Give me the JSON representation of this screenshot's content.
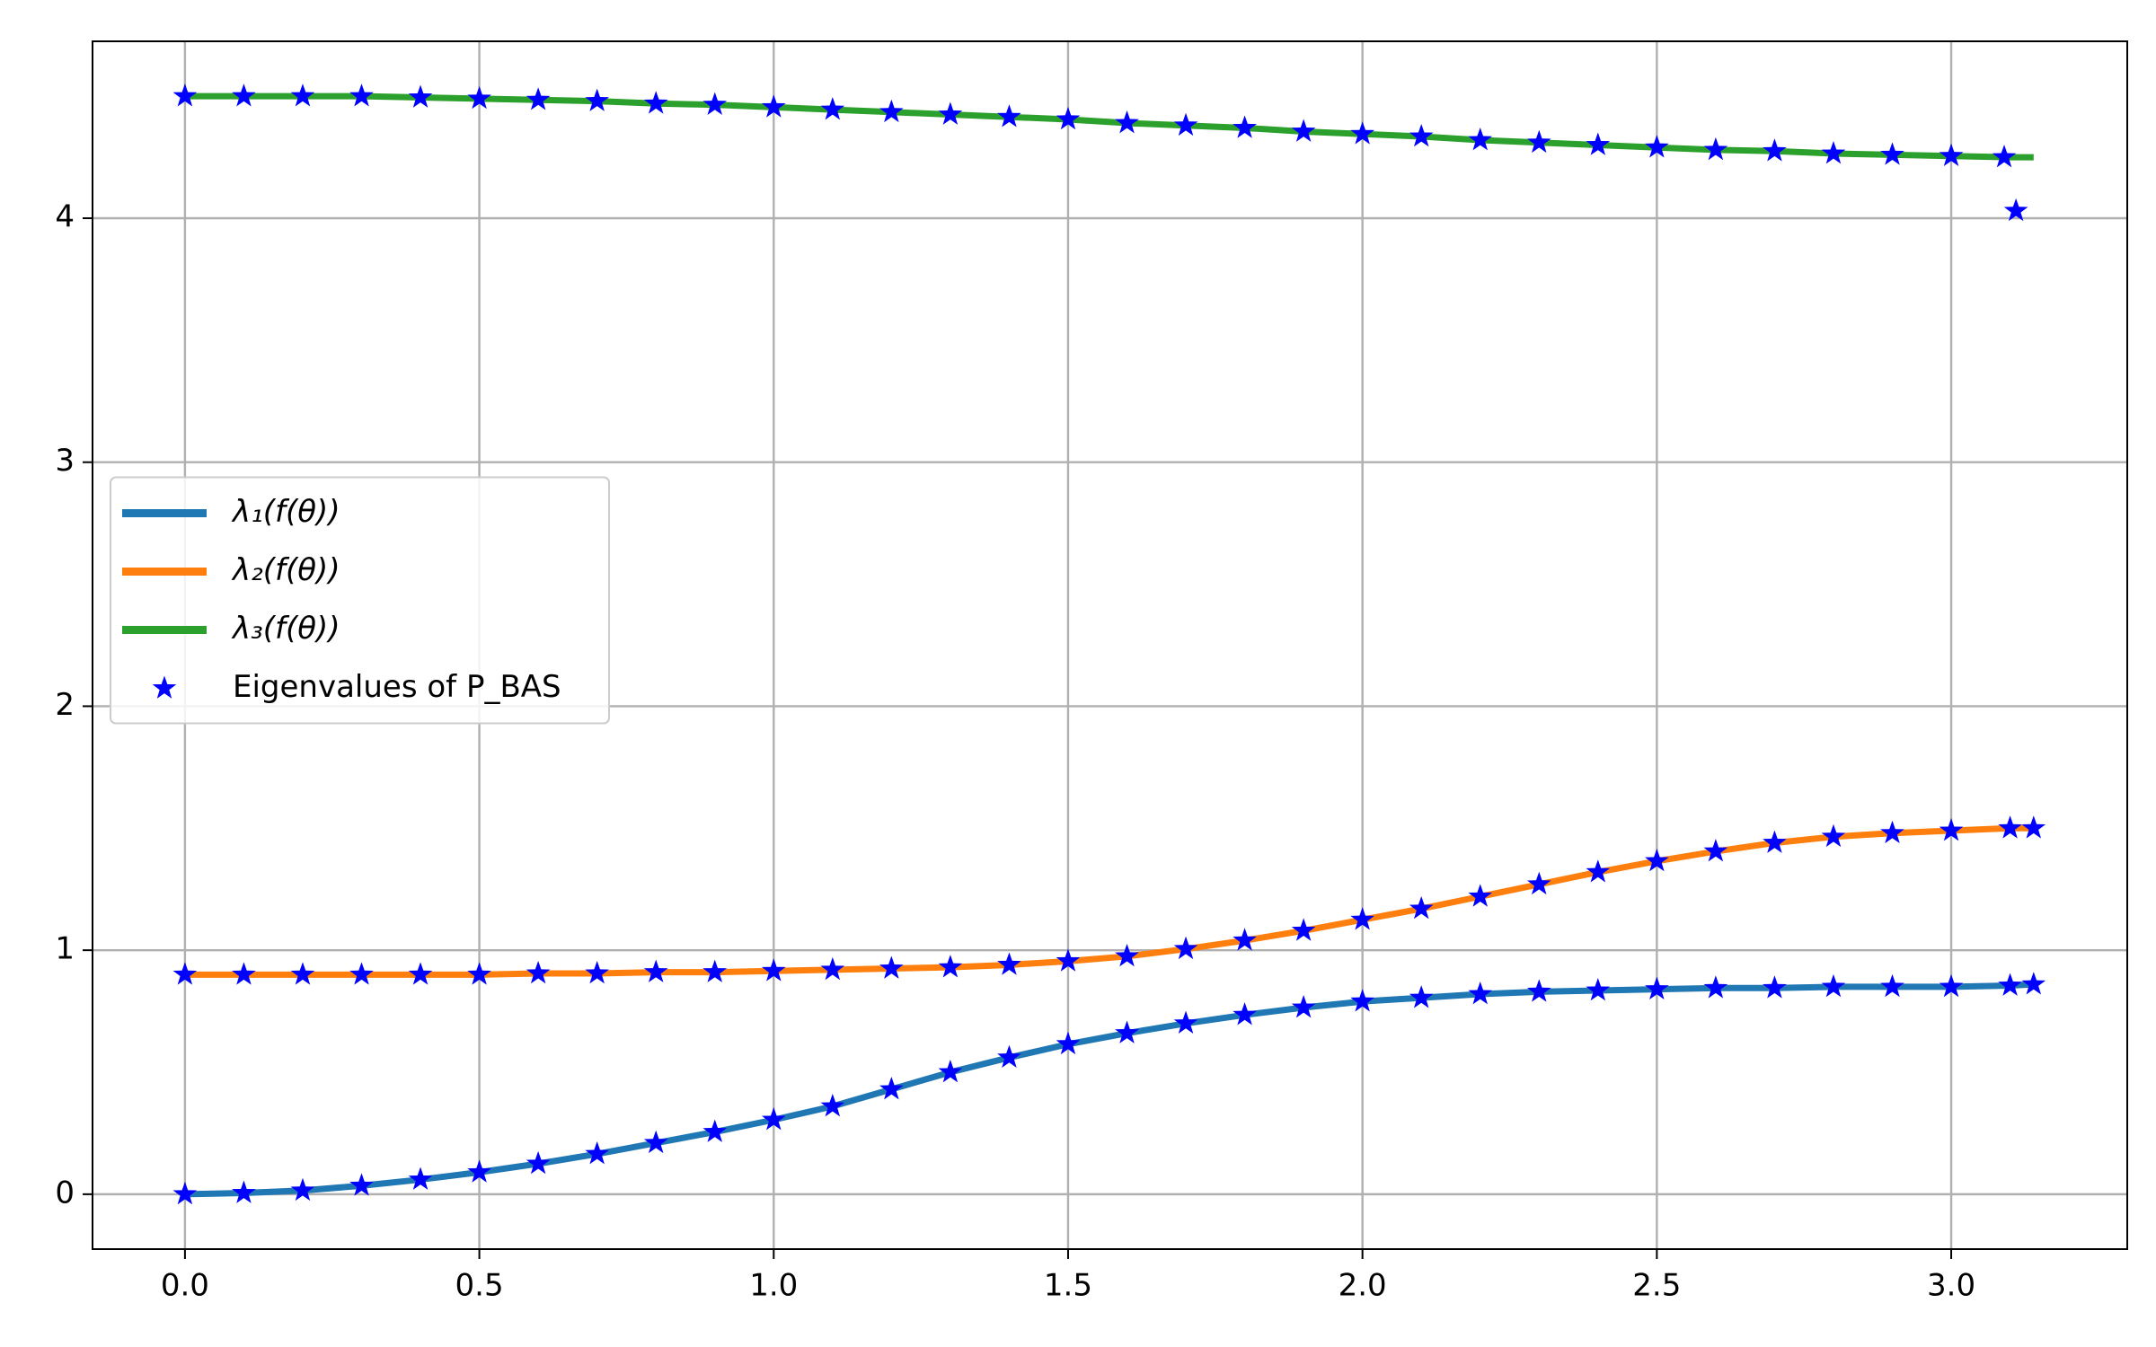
{
  "chart_data": {
    "type": "line",
    "xlim": [
      -0.157,
      3.299
    ],
    "ylim": [
      -0.225,
      4.725
    ],
    "xticks": [
      {
        "value": 0,
        "label": "0.0"
      },
      0.5,
      {
        "value": 1,
        "label": "1.0"
      },
      1.5,
      {
        "value": 2,
        "label": "2.0"
      },
      2.5,
      {
        "value": 3,
        "label": "3.0"
      }
    ],
    "yticks": [
      0,
      1,
      2,
      3,
      4
    ],
    "grid": true,
    "legend": "center left",
    "series": [
      {
        "name": "λ₁(f(θ))",
        "type": "line",
        "color": "#1f77b4",
        "x": [
          0,
          0.1,
          0.2,
          0.3,
          0.4,
          0.5,
          0.6,
          0.7,
          0.8,
          0.9,
          1.0,
          1.1,
          1.2,
          1.3,
          1.4,
          1.5,
          1.6,
          1.7,
          1.8,
          1.9,
          2.0,
          2.1,
          2.2,
          2.3,
          2.4,
          2.5,
          2.6,
          2.7,
          2.8,
          2.9,
          3.0,
          3.1,
          3.14
        ],
        "values": [
          0,
          0.005,
          0.015,
          0.035,
          0.06,
          0.09,
          0.125,
          0.165,
          0.21,
          0.255,
          0.305,
          0.36,
          0.43,
          0.5,
          0.56,
          0.615,
          0.66,
          0.7,
          0.735,
          0.765,
          0.79,
          0.805,
          0.82,
          0.83,
          0.835,
          0.84,
          0.845,
          0.845,
          0.85,
          0.85,
          0.85,
          0.855,
          0.86
        ]
      },
      {
        "name": "λ₂(f(θ))",
        "type": "line",
        "color": "#ff7f0e",
        "x": [
          0,
          0.1,
          0.2,
          0.3,
          0.4,
          0.5,
          0.6,
          0.7,
          0.8,
          0.9,
          1.0,
          1.1,
          1.2,
          1.3,
          1.4,
          1.5,
          1.6,
          1.7,
          1.8,
          1.9,
          2.0,
          2.1,
          2.2,
          2.3,
          2.4,
          2.5,
          2.6,
          2.7,
          2.8,
          2.9,
          3.0,
          3.1,
          3.14
        ],
        "values": [
          0.9,
          0.9,
          0.9,
          0.9,
          0.9,
          0.9,
          0.905,
          0.905,
          0.91,
          0.91,
          0.915,
          0.92,
          0.925,
          0.93,
          0.94,
          0.955,
          0.975,
          1.005,
          1.04,
          1.08,
          1.125,
          1.17,
          1.22,
          1.27,
          1.32,
          1.365,
          1.405,
          1.44,
          1.465,
          1.48,
          1.49,
          1.5,
          1.5
        ]
      },
      {
        "name": "λ₃(f(θ))",
        "type": "line",
        "color": "#2ca02c",
        "x": [
          0,
          0.1,
          0.2,
          0.3,
          0.4,
          0.5,
          0.6,
          0.7,
          0.8,
          0.9,
          1.0,
          1.1,
          1.2,
          1.3,
          1.4,
          1.5,
          1.6,
          1.7,
          1.8,
          1.9,
          2.0,
          2.1,
          2.2,
          2.3,
          2.4,
          2.5,
          2.6,
          2.7,
          2.8,
          2.9,
          3.0,
          3.1,
          3.14
        ],
        "values": [
          4.5,
          4.5,
          4.5,
          4.5,
          4.495,
          4.49,
          4.485,
          4.48,
          4.47,
          4.465,
          4.455,
          4.445,
          4.435,
          4.425,
          4.415,
          4.405,
          4.39,
          4.38,
          4.37,
          4.355,
          4.345,
          4.335,
          4.32,
          4.31,
          4.3,
          4.29,
          4.28,
          4.275,
          4.265,
          4.26,
          4.255,
          4.25,
          4.25
        ]
      },
      {
        "name": "Eigenvalues of P_BAS",
        "type": "scatter",
        "color": "#0000ff",
        "x": [
          0,
          0.1,
          0.2,
          0.3,
          0.4,
          0.5,
          0.6,
          0.7,
          0.8,
          0.9,
          1.0,
          1.1,
          1.2,
          1.3,
          1.4,
          1.5,
          1.6,
          1.7,
          1.8,
          1.9,
          2.0,
          2.1,
          2.2,
          2.3,
          2.4,
          2.5,
          2.6,
          2.7,
          2.8,
          2.9,
          3.0,
          3.1,
          3.14,
          0,
          0.1,
          0.2,
          0.3,
          0.4,
          0.5,
          0.6,
          0.7,
          0.8,
          0.9,
          1.0,
          1.1,
          1.2,
          1.3,
          1.4,
          1.5,
          1.6,
          1.7,
          1.8,
          1.9,
          2.0,
          2.1,
          2.2,
          2.3,
          2.4,
          2.5,
          2.6,
          2.7,
          2.8,
          2.9,
          3.0,
          3.1,
          3.14,
          0,
          0.1,
          0.2,
          0.3,
          0.4,
          0.5,
          0.6,
          0.7,
          0.8,
          0.9,
          1.0,
          1.1,
          1.2,
          1.3,
          1.4,
          1.5,
          1.6,
          1.7,
          1.8,
          1.9,
          2.0,
          2.1,
          2.2,
          2.3,
          2.4,
          2.5,
          2.6,
          2.7,
          2.8,
          2.9,
          3.0,
          3.09,
          3.11
        ],
        "values": [
          0,
          0.005,
          0.015,
          0.035,
          0.06,
          0.09,
          0.125,
          0.165,
          0.21,
          0.255,
          0.305,
          0.36,
          0.43,
          0.5,
          0.56,
          0.615,
          0.66,
          0.7,
          0.735,
          0.765,
          0.79,
          0.805,
          0.82,
          0.83,
          0.835,
          0.84,
          0.845,
          0.845,
          0.85,
          0.85,
          0.85,
          0.855,
          0.86,
          0.9,
          0.9,
          0.9,
          0.9,
          0.9,
          0.9,
          0.905,
          0.905,
          0.91,
          0.91,
          0.915,
          0.92,
          0.925,
          0.93,
          0.94,
          0.955,
          0.975,
          1.005,
          1.04,
          1.08,
          1.125,
          1.17,
          1.22,
          1.27,
          1.32,
          1.365,
          1.405,
          1.44,
          1.465,
          1.48,
          1.49,
          1.5,
          1.5,
          4.5,
          4.5,
          4.5,
          4.5,
          4.495,
          4.49,
          4.485,
          4.48,
          4.47,
          4.465,
          4.455,
          4.445,
          4.435,
          4.425,
          4.415,
          4.405,
          4.39,
          4.38,
          4.37,
          4.355,
          4.345,
          4.335,
          4.32,
          4.31,
          4.3,
          4.29,
          4.28,
          4.275,
          4.265,
          4.26,
          4.255,
          4.25,
          4.03
        ]
      }
    ]
  }
}
